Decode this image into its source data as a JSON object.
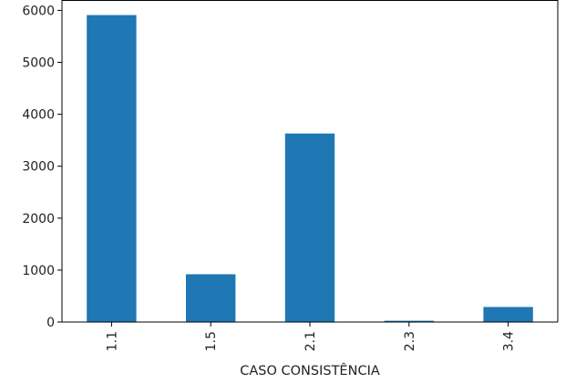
{
  "chart_data": {
    "type": "bar",
    "categories": [
      "1.1",
      "1.5",
      "2.1",
      "2.3",
      "3.4"
    ],
    "values": [
      5910,
      920,
      3630,
      25,
      290
    ],
    "xlabel": "CASO CONSISTÊNCIA",
    "ylabel": "",
    "ylim": [
      0,
      6200
    ],
    "yticks": [
      0,
      1000,
      2000,
      3000,
      4000,
      5000,
      6000
    ],
    "x_tick_rotation": "vertical",
    "grid": false,
    "legend": "none",
    "bar_color": "#1f77b4"
  }
}
